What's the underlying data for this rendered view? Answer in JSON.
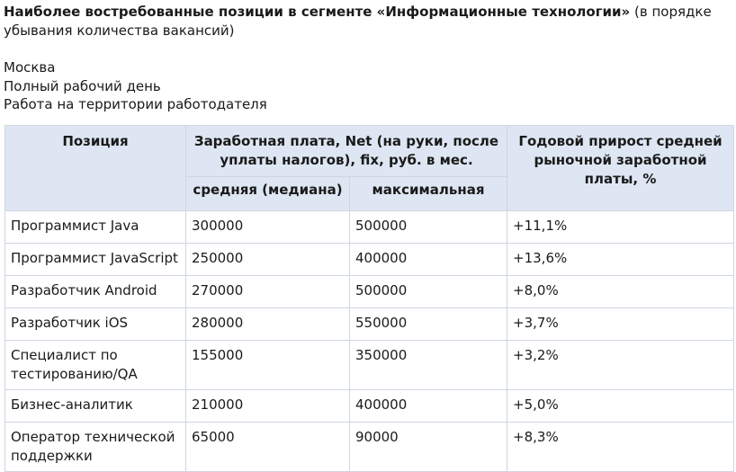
{
  "heading": {
    "bold": "Наиболее востребованные позиции в сегменте «Информационные технологии»",
    "rest": " (в порядке убывания количества вакансий)"
  },
  "meta": {
    "city": "Москва",
    "schedule": "Полный рабочий день",
    "location": "Работа на территории работодателя"
  },
  "table": {
    "headers": {
      "position": "Позиция",
      "salary": "Заработная плата, Net (на руки, после уплаты налогов), fix, руб. в мес.",
      "median": "средняя (медиана)",
      "max": "максимальная",
      "growth": "Годовой прирост средней рыночной заработной платы, %"
    },
    "rows": [
      {
        "position": "Программист Java",
        "median": "300000",
        "max": "500000",
        "growth": "+11,1%"
      },
      {
        "position": "Программист JavaScript",
        "median": "250000",
        "max": "400000",
        "growth": "+13,6%"
      },
      {
        "position": "Разработчик Android",
        "median": "270000",
        "max": "500000",
        "growth": "+8,0%"
      },
      {
        "position": "Разработчик iOS",
        "median": "280000",
        "max": "550000",
        "growth": "+3,7%"
      },
      {
        "position": "Специалист по тестированию/QA",
        "median": "155000",
        "max": "350000",
        "growth": "+3,2%"
      },
      {
        "position": "Бизнес-аналитик",
        "median": "210000",
        "max": "400000",
        "growth": "+5,0%"
      },
      {
        "position": "Оператор технической поддержки",
        "median": "65000",
        "max": "90000",
        "growth": "+8,3%"
      }
    ]
  }
}
